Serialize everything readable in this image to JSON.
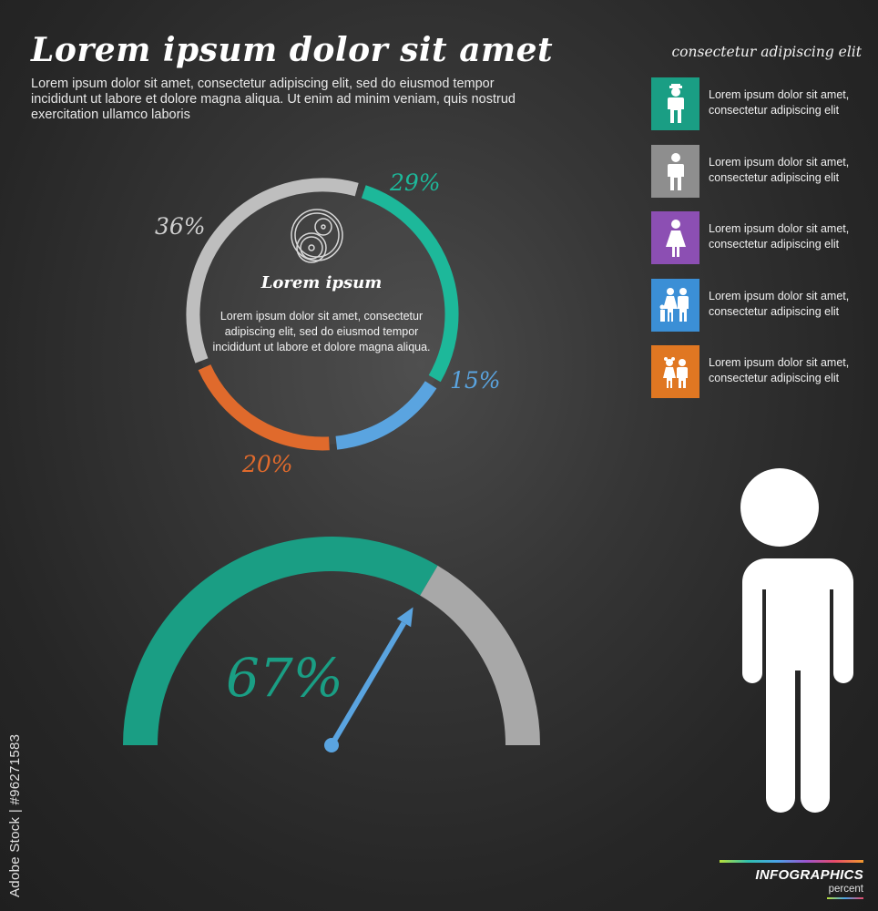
{
  "header": {
    "title": "Lorem ipsum dolor sit amet",
    "intro": "Lorem ipsum dolor sit amet, consectetur adipiscing elit, sed do eiusmod tempor incididunt ut labore et dolore magna aliqua. Ut enim ad minim veniam, quis nostrud exercitation ullamco laboris"
  },
  "legend": {
    "heading": "consectetur adipiscing elit",
    "items": [
      {
        "icon": "man-with-hat-icon",
        "color": "#1a9e84",
        "text": "Lorem ipsum dolor sit amet, consectetur adipiscing elit"
      },
      {
        "icon": "person-icon",
        "color": "#8e8e8e",
        "text": "Lorem ipsum dolor sit amet, consectetur adipiscing elit"
      },
      {
        "icon": "woman-icon",
        "color": "#8c4fb3",
        "text": "Lorem ipsum dolor sit amet, consectetur adipiscing elit"
      },
      {
        "icon": "family-icon",
        "color": "#3b8fd6",
        "text": "Lorem ipsum dolor sit amet, consectetur adipiscing elit"
      },
      {
        "icon": "children-icon",
        "color": "#e07722",
        "text": "Lorem ipsum dolor sit amet, consectetur adipiscing elit"
      }
    ]
  },
  "donut_center": {
    "icon": "gear-icon",
    "title": "Lorem ipsum",
    "text": "Lorem ipsum dolor sit amet, consectetur adipiscing elit, sed do eiusmod tempor incididunt ut labore et dolore magna aliqua."
  },
  "gauge": {
    "value_label": "67%"
  },
  "figure": {
    "icon": "person-icon"
  },
  "watermark": {
    "id": "Adobe Stock | #96271583"
  },
  "brand": {
    "title": "INFOGRAPHICS",
    "subtitle": "percent"
  },
  "chart_data": [
    {
      "type": "pie",
      "style": "donut",
      "slices": [
        {
          "label": "29%",
          "value": 29,
          "color": "#1db89a"
        },
        {
          "label": "15%",
          "value": 15,
          "color": "#5aa4e0"
        },
        {
          "label": "20%",
          "value": 20,
          "color": "#e06a2c"
        },
        {
          "label": "36%",
          "value": 36,
          "color": "#bebebe"
        }
      ]
    },
    {
      "type": "gauge",
      "value": 67,
      "max": 100,
      "label": "67%",
      "fill_color": "#1a9e84",
      "track_color": "#a8a8a8",
      "needle_color": "#5aa4e0"
    }
  ]
}
